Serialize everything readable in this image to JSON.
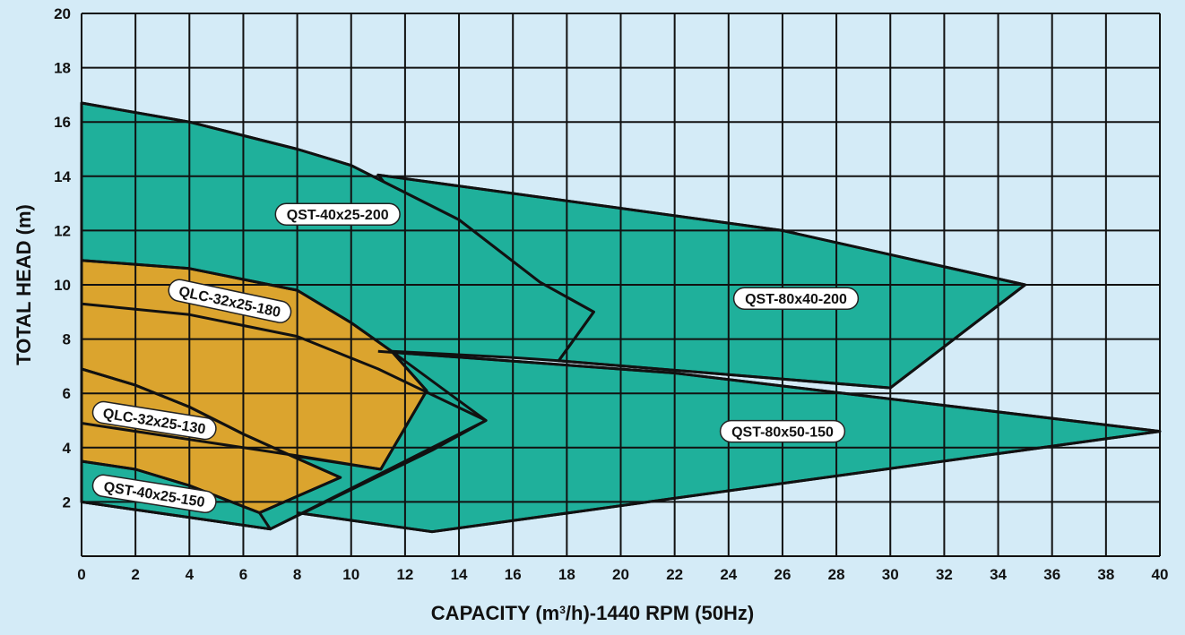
{
  "chart_data": {
    "type": "area",
    "title": "",
    "xlabel": "CAPACITY (m³/h)-1440 RPM (50Hz)",
    "xlabel_main": "CAPACITY (m",
    "xlabel_sup": "3",
    "xlabel_tail": "/h)-1440 RPM (50Hz)",
    "ylabel": "TOTAL HEAD (m)",
    "xlim": [
      0,
      40
    ],
    "ylim": [
      0,
      20
    ],
    "xticks": [
      0,
      2,
      4,
      6,
      8,
      10,
      12,
      14,
      16,
      18,
      20,
      22,
      24,
      26,
      28,
      30,
      32,
      34,
      36,
      38,
      40
    ],
    "yticks": [
      2,
      4,
      6,
      8,
      10,
      12,
      14,
      16,
      18,
      20
    ],
    "grid": true,
    "colors": {
      "teal": "#1fb09b",
      "orange": "#dba42e",
      "background": "#d4ebf7",
      "plot_bg": "#d4ebf7"
    },
    "regions": [
      {
        "name": "QST-80x50-150",
        "color": "#1fb09b",
        "label_at": [
          26,
          4.6
        ],
        "polygon": [
          [
            8,
            1.6
          ],
          [
            13,
            0.9
          ],
          [
            40,
            4.6
          ],
          [
            22,
            6.75
          ],
          [
            11,
            7.55
          ],
          [
            10,
            4.4
          ]
        ]
      },
      {
        "name": "QST-80x40-200",
        "color": "#1fb09b",
        "label_at": [
          26.5,
          9.5
        ],
        "polygon": [
          [
            11,
            14.05
          ],
          [
            26,
            12.0
          ],
          [
            35,
            10.0
          ],
          [
            30,
            6.2
          ],
          [
            17.7,
            7.2
          ],
          [
            16.2,
            7.8
          ]
        ]
      },
      {
        "name": "QST-40x25-200",
        "color": "#1fb09b",
        "label_at": [
          9.5,
          12.6
        ],
        "polygon": [
          [
            0,
            16.7
          ],
          [
            4,
            16.0
          ],
          [
            8,
            15.0
          ],
          [
            10,
            14.4
          ],
          [
            14,
            12.4
          ],
          [
            17,
            10.1
          ],
          [
            19,
            9.0
          ],
          [
            17.7,
            7.2
          ],
          [
            16,
            7.32
          ],
          [
            11.5,
            7.55
          ],
          [
            15,
            5.0
          ],
          [
            13,
            3.9
          ],
          [
            7,
            1.0
          ],
          [
            0,
            2.0
          ]
        ]
      },
      {
        "name": "QLC-32x25-180",
        "color": "#dba42e",
        "label_at": [
          5.5,
          9.4
        ],
        "polygon": [
          [
            0,
            10.9
          ],
          [
            4,
            10.6
          ],
          [
            8,
            9.8
          ],
          [
            10,
            8.6
          ],
          [
            11.5,
            7.55
          ],
          [
            12.8,
            6.1
          ],
          [
            11.1,
            3.2
          ],
          [
            0,
            4.9
          ]
        ]
      },
      {
        "name": "QLC-32x25-130",
        "color": "#dba42e",
        "label_at": [
          2.7,
          5.0
        ],
        "polygon": [
          [
            0,
            6.9
          ],
          [
            2,
            6.3
          ],
          [
            4,
            5.5
          ],
          [
            6,
            4.5
          ],
          [
            8,
            3.6
          ],
          [
            9.6,
            2.9
          ],
          [
            6.6,
            1.6
          ],
          [
            0,
            3.5
          ]
        ]
      },
      {
        "name": "QST-40x25-150",
        "color": "#1fb09b",
        "label_at": [
          2.7,
          2.3
        ],
        "polygon": [
          [
            0,
            3.5
          ],
          [
            2,
            3.2
          ],
          [
            4,
            2.6
          ],
          [
            6.6,
            1.6
          ],
          [
            7,
            1.0
          ],
          [
            0,
            2.0
          ]
        ]
      }
    ],
    "curves": [
      {
        "name": "QST-40x25-200 upper",
        "points": [
          [
            0,
            16.7
          ],
          [
            4,
            16.0
          ],
          [
            8,
            15.0
          ],
          [
            10,
            14.4
          ],
          [
            14,
            12.4
          ],
          [
            17,
            10.1
          ],
          [
            19,
            9.0
          ],
          [
            17.7,
            7.2
          ]
        ]
      },
      {
        "name": "QST-80x40-200 upper",
        "points": [
          [
            11,
            14.05
          ],
          [
            26,
            12.0
          ],
          [
            35,
            10.0
          ],
          [
            30,
            6.2
          ]
        ]
      },
      {
        "name": "QST-80x50-150 upper",
        "points": [
          [
            11,
            7.55
          ],
          [
            22,
            6.75
          ],
          [
            40,
            4.6
          ]
        ]
      },
      {
        "name": "QST-80x50-150 lower",
        "points": [
          [
            8,
            1.6
          ],
          [
            13,
            0.9
          ],
          [
            40,
            4.6
          ]
        ]
      },
      {
        "name": "QLC-32x25-180 upper",
        "points": [
          [
            0,
            10.9
          ],
          [
            4,
            10.6
          ],
          [
            8,
            9.8
          ],
          [
            10,
            8.6
          ],
          [
            11.5,
            7.55
          ],
          [
            12.8,
            6.1
          ],
          [
            11.1,
            3.2
          ]
        ]
      },
      {
        "name": "QLC-32x25-180 lower",
        "points": [
          [
            0,
            9.3
          ],
          [
            4,
            8.9
          ],
          [
            8,
            8.1
          ],
          [
            11,
            6.9
          ],
          [
            15,
            5.0
          ],
          [
            7,
            1.0
          ]
        ]
      },
      {
        "name": "QLC-32x25-130 upper",
        "points": [
          [
            0,
            6.9
          ],
          [
            2,
            6.3
          ],
          [
            4,
            5.5
          ],
          [
            6,
            4.5
          ],
          [
            8,
            3.6
          ],
          [
            9.6,
            2.9
          ],
          [
            6.6,
            1.6
          ]
        ]
      },
      {
        "name": "QLC-32x25-130 lower",
        "points": [
          [
            0,
            4.9
          ],
          [
            4,
            4.3
          ],
          [
            8,
            3.7
          ],
          [
            11.1,
            3.2
          ]
        ]
      },
      {
        "name": "QST-40x25-150 upper",
        "points": [
          [
            0,
            3.5
          ],
          [
            2,
            3.2
          ],
          [
            4,
            2.6
          ],
          [
            6.6,
            1.6
          ]
        ]
      },
      {
        "name": "QST-40x25-150 lower",
        "points": [
          [
            0,
            2.0
          ],
          [
            7,
            1.0
          ]
        ]
      },
      {
        "name": "QST-80x40-200 lower",
        "points": [
          [
            30,
            6.2
          ],
          [
            17.7,
            7.2
          ]
        ]
      }
    ]
  }
}
